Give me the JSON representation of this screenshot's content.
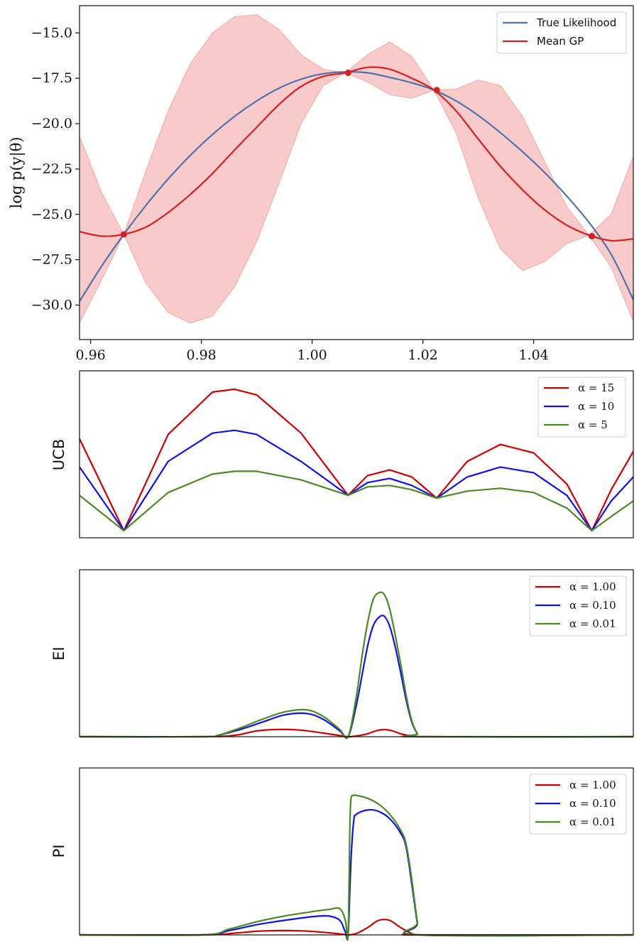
{
  "chart_data": [
    {
      "type": "line",
      "ylabel": "log p(y|θ)",
      "xlim": [
        0.958,
        1.058
      ],
      "ylim": [
        -31.9,
        -13.5
      ],
      "xticks": [
        0.96,
        0.98,
        1.0,
        1.02,
        1.04
      ],
      "xtick_labels": [
        "0.96",
        "0.98",
        "1.00",
        "1.02",
        "1.04"
      ],
      "yticks": [
        -15.0,
        -17.5,
        -20.0,
        -22.5,
        -25.0,
        -27.5,
        -30.0
      ],
      "ytick_labels": [
        "−15.0",
        "−17.5",
        "−20.0",
        "−22.5",
        "−25.0",
        "−27.5",
        "−30.0"
      ],
      "legend_position": "top-right",
      "series": [
        {
          "name": "True Likelihood",
          "color": "#4c72b0",
          "x": [
            0.958,
            0.962,
            0.966,
            0.97,
            0.974,
            0.978,
            0.982,
            0.986,
            0.99,
            0.994,
            0.998,
            1.002,
            1.006,
            1.01,
            1.014,
            1.018,
            1.022,
            1.026,
            1.03,
            1.034,
            1.038,
            1.042,
            1.046,
            1.05,
            1.054,
            1.058
          ],
          "y": [
            -29.8,
            -27.85,
            -26.1,
            -24.5,
            -23.05,
            -21.75,
            -20.6,
            -19.6,
            -18.75,
            -18.05,
            -17.55,
            -17.25,
            -17.15,
            -17.2,
            -17.45,
            -17.75,
            -18.15,
            -18.75,
            -19.55,
            -20.5,
            -21.55,
            -22.7,
            -24.0,
            -25.45,
            -27.2,
            -29.7
          ]
        },
        {
          "name": "Mean GP",
          "color": "#d62020",
          "x": [
            0.958,
            0.962,
            0.966,
            0.97,
            0.974,
            0.978,
            0.982,
            0.986,
            0.99,
            0.994,
            0.998,
            1.002,
            1.006,
            1.01,
            1.014,
            1.018,
            1.022,
            1.026,
            1.03,
            1.034,
            1.038,
            1.042,
            1.046,
            1.05,
            1.054,
            1.058
          ],
          "y": [
            -25.95,
            -26.2,
            -26.1,
            -25.7,
            -24.9,
            -23.9,
            -22.75,
            -21.45,
            -20.2,
            -18.95,
            -17.95,
            -17.4,
            -17.2,
            -16.9,
            -17.0,
            -17.5,
            -18.15,
            -19.3,
            -20.85,
            -22.35,
            -23.65,
            -24.75,
            -25.6,
            -26.15,
            -26.45,
            -26.35
          ]
        }
      ],
      "confidence_band": {
        "color": "#f4a6a6",
        "x": [
          0.958,
          0.962,
          0.966,
          0.97,
          0.974,
          0.978,
          0.982,
          0.986,
          0.99,
          0.994,
          0.998,
          1.002,
          1.006,
          1.01,
          1.014,
          1.018,
          1.022,
          1.026,
          1.03,
          1.034,
          1.038,
          1.042,
          1.046,
          1.05,
          1.054,
          1.058
        ],
        "upper": [
          -20.7,
          -23.8,
          -26.1,
          -22.6,
          -19.3,
          -16.7,
          -15.0,
          -14.1,
          -14.0,
          -14.8,
          -16.2,
          -17.0,
          -17.2,
          -16.2,
          -15.5,
          -16.3,
          -18.15,
          -18.1,
          -17.6,
          -17.9,
          -19.6,
          -22.1,
          -24.6,
          -26.15,
          -25.0,
          -21.8
        ],
        "lower": [
          -31.0,
          -28.6,
          -26.1,
          -28.8,
          -30.4,
          -31.0,
          -30.6,
          -29.0,
          -26.5,
          -23.3,
          -20.0,
          -17.9,
          -17.2,
          -17.7,
          -18.4,
          -18.6,
          -18.15,
          -20.5,
          -24.1,
          -26.9,
          -28.1,
          -27.6,
          -26.6,
          -26.15,
          -27.9,
          -30.9
        ]
      },
      "observations": {
        "color": "#d62020",
        "x": [
          0.966,
          1.0065,
          1.0225,
          1.0505
        ],
        "y": [
          -26.1,
          -17.2,
          -18.15,
          -26.2
        ]
      }
    },
    {
      "type": "line",
      "ylabel": "UCB",
      "xlim": [
        0.958,
        1.058
      ],
      "ylim": [
        -0.05,
        1.08
      ],
      "legend_position": "top-right",
      "series": [
        {
          "name": "α = 15",
          "color": "#d00000",
          "x": [
            0.958,
            0.966,
            0.974,
            0.982,
            0.986,
            0.99,
            0.998,
            1.0065,
            1.01,
            1.014,
            1.018,
            1.0225,
            1.028,
            1.034,
            1.04,
            1.046,
            1.0505,
            1.054,
            1.058
          ],
          "y": [
            0.65,
            0.0,
            0.68,
            0.98,
            1.0,
            0.96,
            0.69,
            0.25,
            0.39,
            0.43,
            0.38,
            0.23,
            0.49,
            0.61,
            0.55,
            0.33,
            0.0,
            0.29,
            0.56
          ]
        },
        {
          "name": "α = 10",
          "color": "#1010f0",
          "x": [
            0.958,
            0.966,
            0.974,
            0.982,
            0.986,
            0.99,
            0.998,
            1.0065,
            1.01,
            1.014,
            1.018,
            1.0225,
            1.028,
            1.034,
            1.04,
            1.046,
            1.0505,
            1.054,
            1.058
          ],
          "y": [
            0.45,
            0.0,
            0.49,
            0.69,
            0.71,
            0.68,
            0.49,
            0.25,
            0.34,
            0.37,
            0.32,
            0.23,
            0.38,
            0.45,
            0.41,
            0.25,
            0.0,
            0.21,
            0.38
          ]
        },
        {
          "name": "α = 5",
          "color": "#4a8a20",
          "x": [
            0.958,
            0.966,
            0.974,
            0.982,
            0.986,
            0.99,
            0.998,
            1.0065,
            1.01,
            1.014,
            1.018,
            1.0225,
            1.028,
            1.034,
            1.04,
            1.046,
            1.0505,
            1.054,
            1.058
          ],
          "y": [
            0.25,
            0.0,
            0.27,
            0.4,
            0.42,
            0.42,
            0.36,
            0.25,
            0.31,
            0.32,
            0.29,
            0.23,
            0.28,
            0.3,
            0.27,
            0.16,
            0.0,
            0.1,
            0.21
          ]
        }
      ]
    },
    {
      "type": "line",
      "ylabel": "EI",
      "xlim": [
        0.958,
        1.058
      ],
      "ylim": [
        0.0,
        1.1
      ],
      "legend_position": "top-right",
      "series": [
        {
          "name": "α = 1.00",
          "color": "#d00000",
          "x": [
            0.958,
            0.98,
            0.986,
            0.99,
            0.994,
            0.998,
            1.002,
            1.0055,
            1.0065,
            1.008,
            1.01,
            1.012,
            1.014,
            1.016,
            1.018,
            1.0195,
            1.058
          ],
          "y": [
            0.0,
            0.0,
            0.01,
            0.04,
            0.05,
            0.045,
            0.025,
            0.005,
            0.0,
            0.005,
            0.02,
            0.045,
            0.045,
            0.02,
            0.005,
            0.0,
            0.0
          ]
        },
        {
          "name": "α = 0.10",
          "color": "#1010f0",
          "x": [
            0.958,
            0.98,
            0.983,
            0.987,
            0.991,
            0.995,
            0.999,
            1.002,
            1.005,
            1.0065,
            1.008,
            1.009,
            1.01,
            1.011,
            1.012,
            1.013,
            1.014,
            1.015,
            1.016,
            1.017,
            1.018,
            1.019,
            1.0195,
            1.058
          ],
          "y": [
            0.0,
            0.0,
            0.01,
            0.05,
            0.1,
            0.15,
            0.16,
            0.12,
            0.04,
            0.0,
            0.22,
            0.42,
            0.62,
            0.76,
            0.82,
            0.83,
            0.76,
            0.62,
            0.44,
            0.25,
            0.1,
            0.02,
            0.0,
            0.0
          ]
        },
        {
          "name": "α = 0.01",
          "color": "#4a8a20",
          "x": [
            0.958,
            0.98,
            0.983,
            0.987,
            0.991,
            0.995,
            0.999,
            1.002,
            1.005,
            1.0065,
            1.008,
            1.009,
            1.01,
            1.011,
            1.012,
            1.013,
            1.014,
            1.015,
            1.016,
            1.017,
            1.018,
            1.019,
            1.0195,
            1.058
          ],
          "y": [
            0.0,
            0.0,
            0.01,
            0.06,
            0.12,
            0.17,
            0.185,
            0.14,
            0.05,
            0.0,
            0.28,
            0.55,
            0.78,
            0.94,
            0.99,
            0.98,
            0.88,
            0.7,
            0.5,
            0.28,
            0.11,
            0.02,
            0.0,
            0.0
          ]
        }
      ]
    },
    {
      "type": "line",
      "ylabel": "PI",
      "xlim": [
        0.958,
        1.058
      ],
      "ylim": [
        0.0,
        1.1
      ],
      "legend_position": "top-right",
      "series": [
        {
          "name": "α = 1.00",
          "color": "#d00000",
          "x": [
            0.958,
            0.98,
            0.986,
            0.99,
            0.994,
            0.998,
            1.002,
            1.0055,
            1.0065,
            1.008,
            1.01,
            1.012,
            1.014,
            1.016,
            1.018,
            1.0195,
            1.058
          ],
          "y": [
            0.0,
            0.0,
            0.012,
            0.025,
            0.03,
            0.028,
            0.018,
            0.005,
            0.0,
            0.01,
            0.05,
            0.1,
            0.1,
            0.05,
            0.01,
            0.0,
            0.0
          ]
        },
        {
          "name": "α = 0.10",
          "color": "#1010f0",
          "x": [
            0.958,
            0.98,
            0.985,
            0.99,
            0.995,
            1.0,
            1.003,
            1.005,
            1.006,
            1.0065,
            1.007,
            1.0075,
            1.008,
            1.01,
            1.012,
            1.014,
            1.016,
            1.017,
            1.018,
            1.019,
            1.0195,
            1.058
          ],
          "y": [
            0.0,
            0.0,
            0.03,
            0.07,
            0.1,
            0.125,
            0.13,
            0.1,
            0.02,
            0.0,
            0.5,
            0.78,
            0.83,
            0.86,
            0.85,
            0.8,
            0.7,
            0.6,
            0.35,
            0.08,
            0.0,
            0.0
          ]
        },
        {
          "name": "α = 0.01",
          "color": "#4a8a20",
          "x": [
            0.958,
            0.98,
            0.985,
            0.99,
            0.995,
            1.0,
            1.003,
            1.005,
            1.006,
            1.0065,
            1.0068,
            1.007,
            1.0075,
            1.008,
            1.01,
            1.012,
            1.014,
            1.016,
            1.017,
            1.018,
            1.019,
            1.0195,
            1.058
          ],
          "y": [
            0.0,
            0.0,
            0.04,
            0.09,
            0.13,
            0.16,
            0.175,
            0.18,
            0.1,
            0.0,
            0.7,
            0.93,
            0.96,
            0.96,
            0.94,
            0.9,
            0.83,
            0.72,
            0.62,
            0.38,
            0.09,
            0.0,
            0.0
          ]
        }
      ]
    }
  ]
}
